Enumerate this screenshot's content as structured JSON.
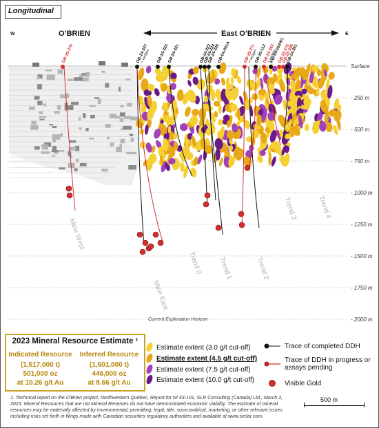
{
  "title": "Longitudinal",
  "header": {
    "west": "W",
    "east": "E",
    "obrien": "O’BRIEN",
    "east_obrien": "East O’BRIEN"
  },
  "depth_labels": [
    "Surface",
    "- 250 m",
    "- 500 m",
    "- 750 m",
    "- 1000 m",
    "- 1250 m",
    "- 1500 m",
    "- 1750 m",
    "- 2000 m"
  ],
  "zone_labels": {
    "mine_west": "Mine West",
    "mine_east": "Mine East",
    "trend_0": "Trend 0",
    "trend_1": "Trend 1",
    "trend_2": "Trend 2",
    "trend_3": "Trend 3",
    "trend_4": "Trend 4",
    "horizon": "Current Exploration Horizon"
  },
  "drillholes": [
    {
      "id": "OB-25-376",
      "status": "in-progress"
    },
    {
      "id": "OB-24-337",
      "sub": "+ wedges",
      "status": "completed"
    },
    {
      "id": "OB-24-323",
      "status": "completed"
    },
    {
      "id": "OB-24-321",
      "status": "completed"
    },
    {
      "id": "OB-24-322",
      "status": "completed"
    },
    {
      "id": "OB-24-324",
      "status": "completed"
    },
    {
      "id": "OB-24-326",
      "status": "completed"
    },
    {
      "id": "OB-04-001A",
      "status": "completed"
    },
    {
      "id": "OB-25-371",
      "sub": "+ wedges",
      "status": "in-progress"
    },
    {
      "id": "OB-20-113",
      "status": "completed"
    },
    {
      "id": "OB-24-363",
      "sub": "+ wedges",
      "status": "in-progress"
    },
    {
      "id": "KW-04-002W1",
      "status": "completed"
    },
    {
      "id": "OB-25-375",
      "status": "in-progress"
    },
    {
      "id": "OB-25-386",
      "status": "in-progress"
    },
    {
      "id": "OB-24-361",
      "status": "completed"
    }
  ],
  "resource": {
    "heading": "2023 Mineral Resource Estimate ¹",
    "indicated": {
      "label": "Indicated Resource",
      "tonnes": "(1,517,000 t)",
      "oz": "501,000 oz",
      "grade": "at 10.26 g/t Au"
    },
    "inferred": {
      "label": "Inferred Resource",
      "tonnes": "(1,601,000 t)",
      "oz": "446,000 oz",
      "grade": "at 8.66 g/t Au"
    }
  },
  "legend": {
    "estimates": [
      {
        "label": "Estimate extent (3.0  g/t cut-off)",
        "color": "#f5d033"
      },
      {
        "label": "Estimate extent (4.5  g/t cut-off)",
        "color": "#e8a817"
      },
      {
        "label": "Estimate extent (7.5 g/t cut-off)",
        "color": "#a241b8"
      },
      {
        "label": "Estimate extent (10.0 g/t cut-off)",
        "color": "#6a1b8a"
      }
    ],
    "symbols": [
      {
        "label": "Trace of completed DDH"
      },
      {
        "label": "Trace of DDH in progress or assays pending"
      },
      {
        "label": "Visible Gold"
      }
    ]
  },
  "footnote": "1. Technical report on the O’Brien project, Northwestern Québec, Report for NI 43-101, SLR Consulting (Canada) Ltd., March 2, 2023. Mineral Resources that are not Mineral Reserves do not have demonstrated economic viability. The estimate of mineral resources may be materially affected by environmental, permitting, legal, title, socio-political, marketing, or other relevant issues including  risks set forth in filings made with Canadian securities regulatory authorities and available at www.sedar.com.",
  "scale": {
    "label": "500 m"
  },
  "colors": {
    "gold": "#b8860b",
    "completed": "#111111",
    "in_progress": "#d03030",
    "purple": "#7b2d9e"
  }
}
